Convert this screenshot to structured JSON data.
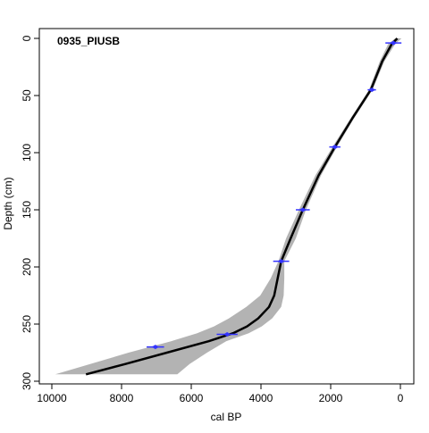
{
  "chart_data": {
    "type": "line",
    "title": "0935_PIUSB",
    "xlabel": "cal BP",
    "ylabel": "Depth (cm)",
    "xlim": [
      10000,
      0
    ],
    "ylim": [
      300,
      0
    ],
    "x_reversed": true,
    "y_reversed": true,
    "xticks": [
      10000,
      8000,
      6000,
      4000,
      2000,
      0
    ],
    "xtick_labels": [
      "10000",
      "8000",
      "6000",
      "4000",
      "2000",
      "0"
    ],
    "yticks": [
      0,
      50,
      100,
      150,
      200,
      250,
      300
    ],
    "ytick_labels": [
      "0",
      "50",
      "100",
      "150",
      "200",
      "250",
      "300"
    ],
    "grid": false,
    "colors": {
      "median": "#000000",
      "envelope": "#b3b3b3",
      "dates": "#3333ff"
    },
    "median": {
      "depth": [
        0,
        5,
        20,
        45,
        70,
        95,
        120,
        150,
        175,
        195,
        210,
        225,
        235,
        245,
        252,
        258,
        265,
        275,
        285,
        294
      ],
      "age": [
        90,
        250,
        520,
        850,
        1380,
        1880,
        2350,
        2800,
        3150,
        3420,
        3520,
        3620,
        3770,
        4080,
        4400,
        4800,
        5500,
        6700,
        7900,
        9020
      ]
    },
    "envelope": {
      "depth": [
        0,
        5,
        20,
        45,
        70,
        95,
        120,
        150,
        175,
        195,
        210,
        225,
        235,
        245,
        252,
        258,
        265,
        275,
        285,
        294
      ],
      "age_young": [
        -30,
        150,
        460,
        800,
        1330,
        1820,
        2280,
        2710,
        3000,
        3330,
        3330,
        3350,
        3420,
        3680,
        3980,
        4350,
        5000,
        5550,
        6050,
        6400
      ],
      "age_old": [
        150,
        350,
        590,
        900,
        1430,
        1950,
        2440,
        2910,
        3280,
        3500,
        3720,
        4020,
        4420,
        4920,
        5350,
        5830,
        6580,
        7800,
        8900,
        9900
      ]
    },
    "dates": [
      {
        "depth": 4,
        "age": 200,
        "err": 230
      },
      {
        "depth": 45,
        "age": 820,
        "err": 120
      },
      {
        "depth": 95,
        "age": 1880,
        "err": 160
      },
      {
        "depth": 150,
        "age": 2800,
        "err": 200
      },
      {
        "depth": 195,
        "age": 3420,
        "err": 230
      },
      {
        "depth": 259,
        "age": 4970,
        "err": 300
      },
      {
        "depth": 270,
        "age": 7030,
        "err": 250
      }
    ]
  }
}
